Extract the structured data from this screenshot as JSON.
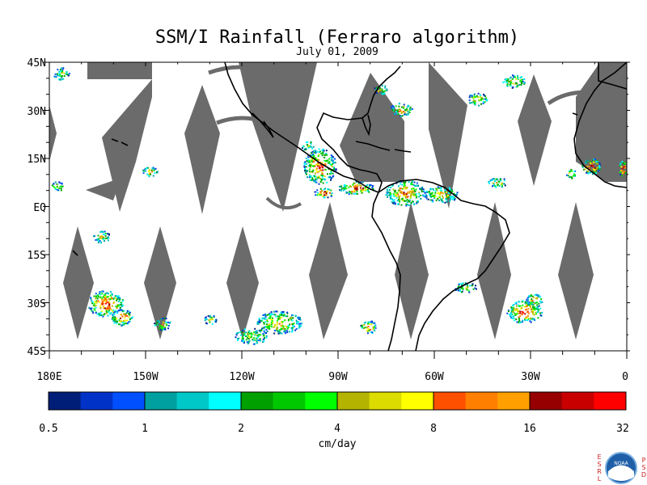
{
  "title": "SSM/I Rainfall (Ferraro algorithm)",
  "subtitle": "July 01, 2009",
  "map": {
    "lat_labels": [
      "45N",
      "30N",
      "15N",
      "EQ",
      "15S",
      "30S",
      "45S"
    ],
    "lon_labels": [
      "180E",
      "150W",
      "120W",
      "90W",
      "60W",
      "30W",
      "0"
    ],
    "lat_range": [
      -45,
      45
    ],
    "lon_range": [
      -180,
      0
    ],
    "no_data_color": "#6b6b6b",
    "coastline_color": "#000000"
  },
  "colorbar": {
    "unit_label": "cm/day",
    "tick_labels": [
      "0.5",
      "1",
      "2",
      "4",
      "8",
      "16",
      "32"
    ],
    "colors": [
      "#001e78",
      "#0032c8",
      "#0050ff",
      "#00a0a0",
      "#00c8c8",
      "#00ffff",
      "#00a000",
      "#00c800",
      "#00ff00",
      "#b4b400",
      "#dcdc00",
      "#ffff00",
      "#ff5000",
      "#ff8000",
      "#ffa000",
      "#960000",
      "#c80000",
      "#ff0000"
    ]
  },
  "logo": {
    "left_letters": [
      "E",
      "S",
      "R",
      "L"
    ],
    "right_letters": [
      "P",
      "S",
      "D"
    ],
    "center_text": "NOAA"
  }
}
